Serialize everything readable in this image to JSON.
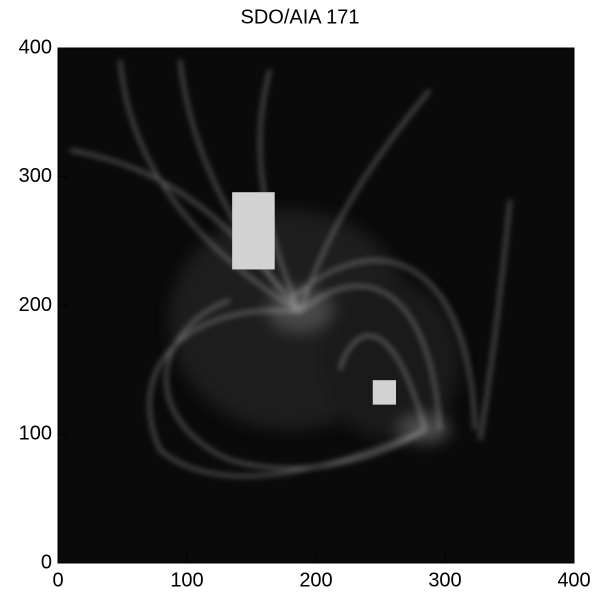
{
  "chart_data": {
    "type": "image",
    "title": "SDO/AIA 171",
    "xlim": [
      0,
      400
    ],
    "ylim": [
      0,
      400
    ],
    "xticks": [
      0,
      100,
      200,
      300,
      400
    ],
    "yticks": [
      0,
      100,
      200,
      300,
      400
    ],
    "regions": [
      {
        "xlim": [
          135,
          168
        ],
        "ylim": [
          228,
          288
        ],
        "color": "#d3d3d3"
      },
      {
        "xlim": [
          244,
          262
        ],
        "ylim": [
          123,
          142
        ],
        "color": "#d3d3d3"
      }
    ]
  }
}
